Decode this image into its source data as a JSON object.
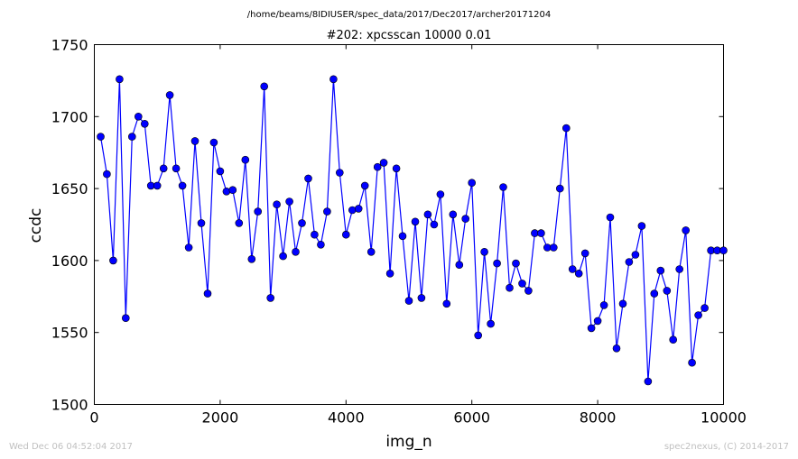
{
  "header": {
    "path": "/home/beams/8IDIUSER/spec_data/2017/Dec2017/archer20171204"
  },
  "footer": {
    "timestamp": "Wed Dec 06 04:52:04 2017",
    "credit": "spec2nexus, (C) 2014-2017"
  },
  "colors": {
    "series": "#0000ff",
    "axes": "#000000",
    "footer": "#c0c0c0"
  },
  "chart_data": {
    "type": "line",
    "title": "#202: xpcsscan 10000 0.01",
    "xlabel": "img_n",
    "ylabel": "ccdc",
    "xlim": [
      0,
      10000
    ],
    "ylim": [
      1500,
      1750
    ],
    "xticks": [
      "0",
      "2000",
      "4000",
      "6000",
      "8000",
      "10000"
    ],
    "yticks": [
      "1500",
      "1550",
      "1600",
      "1650",
      "1700",
      "1750"
    ],
    "grid": false,
    "marker": "circle",
    "series": [
      {
        "x": [
          100,
          200,
          300,
          400,
          500,
          600,
          700,
          800,
          900,
          1000,
          1100,
          1200,
          1300,
          1400,
          1500,
          1600,
          1700,
          1800,
          1900,
          2000,
          2100,
          2200,
          2300,
          2400,
          2500,
          2600,
          2700,
          2800,
          2900,
          3000,
          3100,
          3200,
          3300,
          3400,
          3500,
          3600,
          3700,
          3800,
          3900,
          4000,
          4100,
          4200,
          4300,
          4400,
          4500,
          4600,
          4700,
          4800,
          4900,
          5000,
          5100,
          5200,
          5300,
          5400,
          5500,
          5600,
          5700,
          5800,
          5900,
          6000,
          6100,
          6200,
          6300,
          6400,
          6500,
          6600,
          6700,
          6800,
          6900,
          7000,
          7100,
          7200,
          7300,
          7400,
          7500,
          7600,
          7700,
          7800,
          7900,
          8000,
          8100,
          8200,
          8300,
          8400,
          8500,
          8600,
          8700,
          8800,
          8900,
          9000,
          9100,
          9200,
          9300,
          9400,
          9500,
          9600,
          9700,
          9800,
          9900,
          10000
        ],
        "y": [
          1686,
          1660,
          1600,
          1726,
          1560,
          1686,
          1700,
          1695,
          1652,
          1652,
          1664,
          1715,
          1664,
          1652,
          1609,
          1683,
          1626,
          1577,
          1682,
          1662,
          1648,
          1649,
          1626,
          1670,
          1601,
          1634,
          1721,
          1574,
          1639,
          1603,
          1641,
          1606,
          1626,
          1657,
          1618,
          1611,
          1634,
          1726,
          1661,
          1618,
          1635,
          1636,
          1652,
          1606,
          1665,
          1668,
          1591,
          1664,
          1617,
          1572,
          1627,
          1574,
          1632,
          1625,
          1646,
          1570,
          1632,
          1597,
          1629,
          1654,
          1548,
          1606,
          1556,
          1598,
          1651,
          1581,
          1598,
          1584,
          1579,
          1619,
          1619,
          1609,
          1609,
          1650,
          1692,
          1594,
          1591,
          1605,
          1553,
          1558,
          1569,
          1630,
          1539,
          1570,
          1599,
          1604,
          1624,
          1516,
          1577,
          1593,
          1579,
          1545,
          1594,
          1621,
          1529,
          1562,
          1567,
          1607,
          1607,
          1607
        ]
      }
    ]
  }
}
